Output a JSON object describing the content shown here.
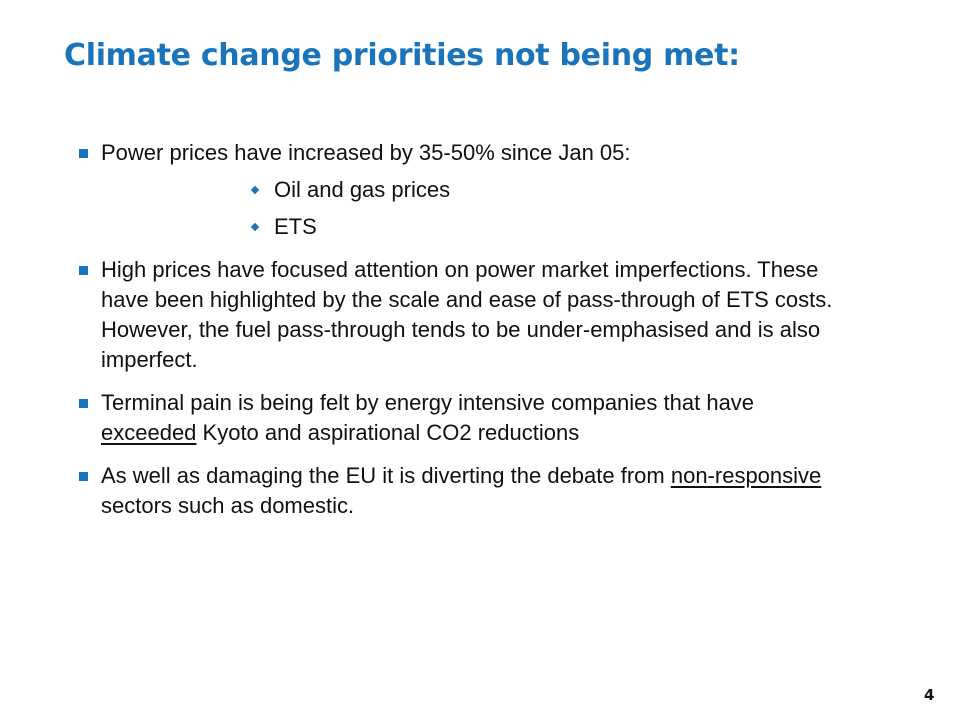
{
  "slide": {
    "title": "Climate change priorities not being met:",
    "page_number": "4"
  },
  "bullets": [
    {
      "text": "Power prices have increased by 35-50% since Jan 05:",
      "subs": [
        "Oil and gas prices",
        "ETS"
      ]
    },
    {
      "text": "High prices have focused attention on power market imperfections.  These have been highlighted by the scale and ease of pass-through of ETS costs.  However, the fuel pass-through tends to be under-emphasised and is also imperfect."
    },
    {
      "text_before": "Terminal pain is being felt by energy intensive companies that have ",
      "text_underlined": "exceeded",
      "text_after": " Kyoto and aspirational CO2 reductions"
    },
    {
      "text_before": "As well as damaging the EU it is diverting the debate from ",
      "text_underlined": "non-responsive",
      "text_after": " sectors such as domestic."
    }
  ],
  "colors": {
    "accent": "#1a74bc",
    "text": "#111111",
    "background": "#ffffff"
  },
  "icons": {
    "primary_bullet": "square-bullet-icon",
    "secondary_bullet": "diamond-bullet-icon"
  }
}
